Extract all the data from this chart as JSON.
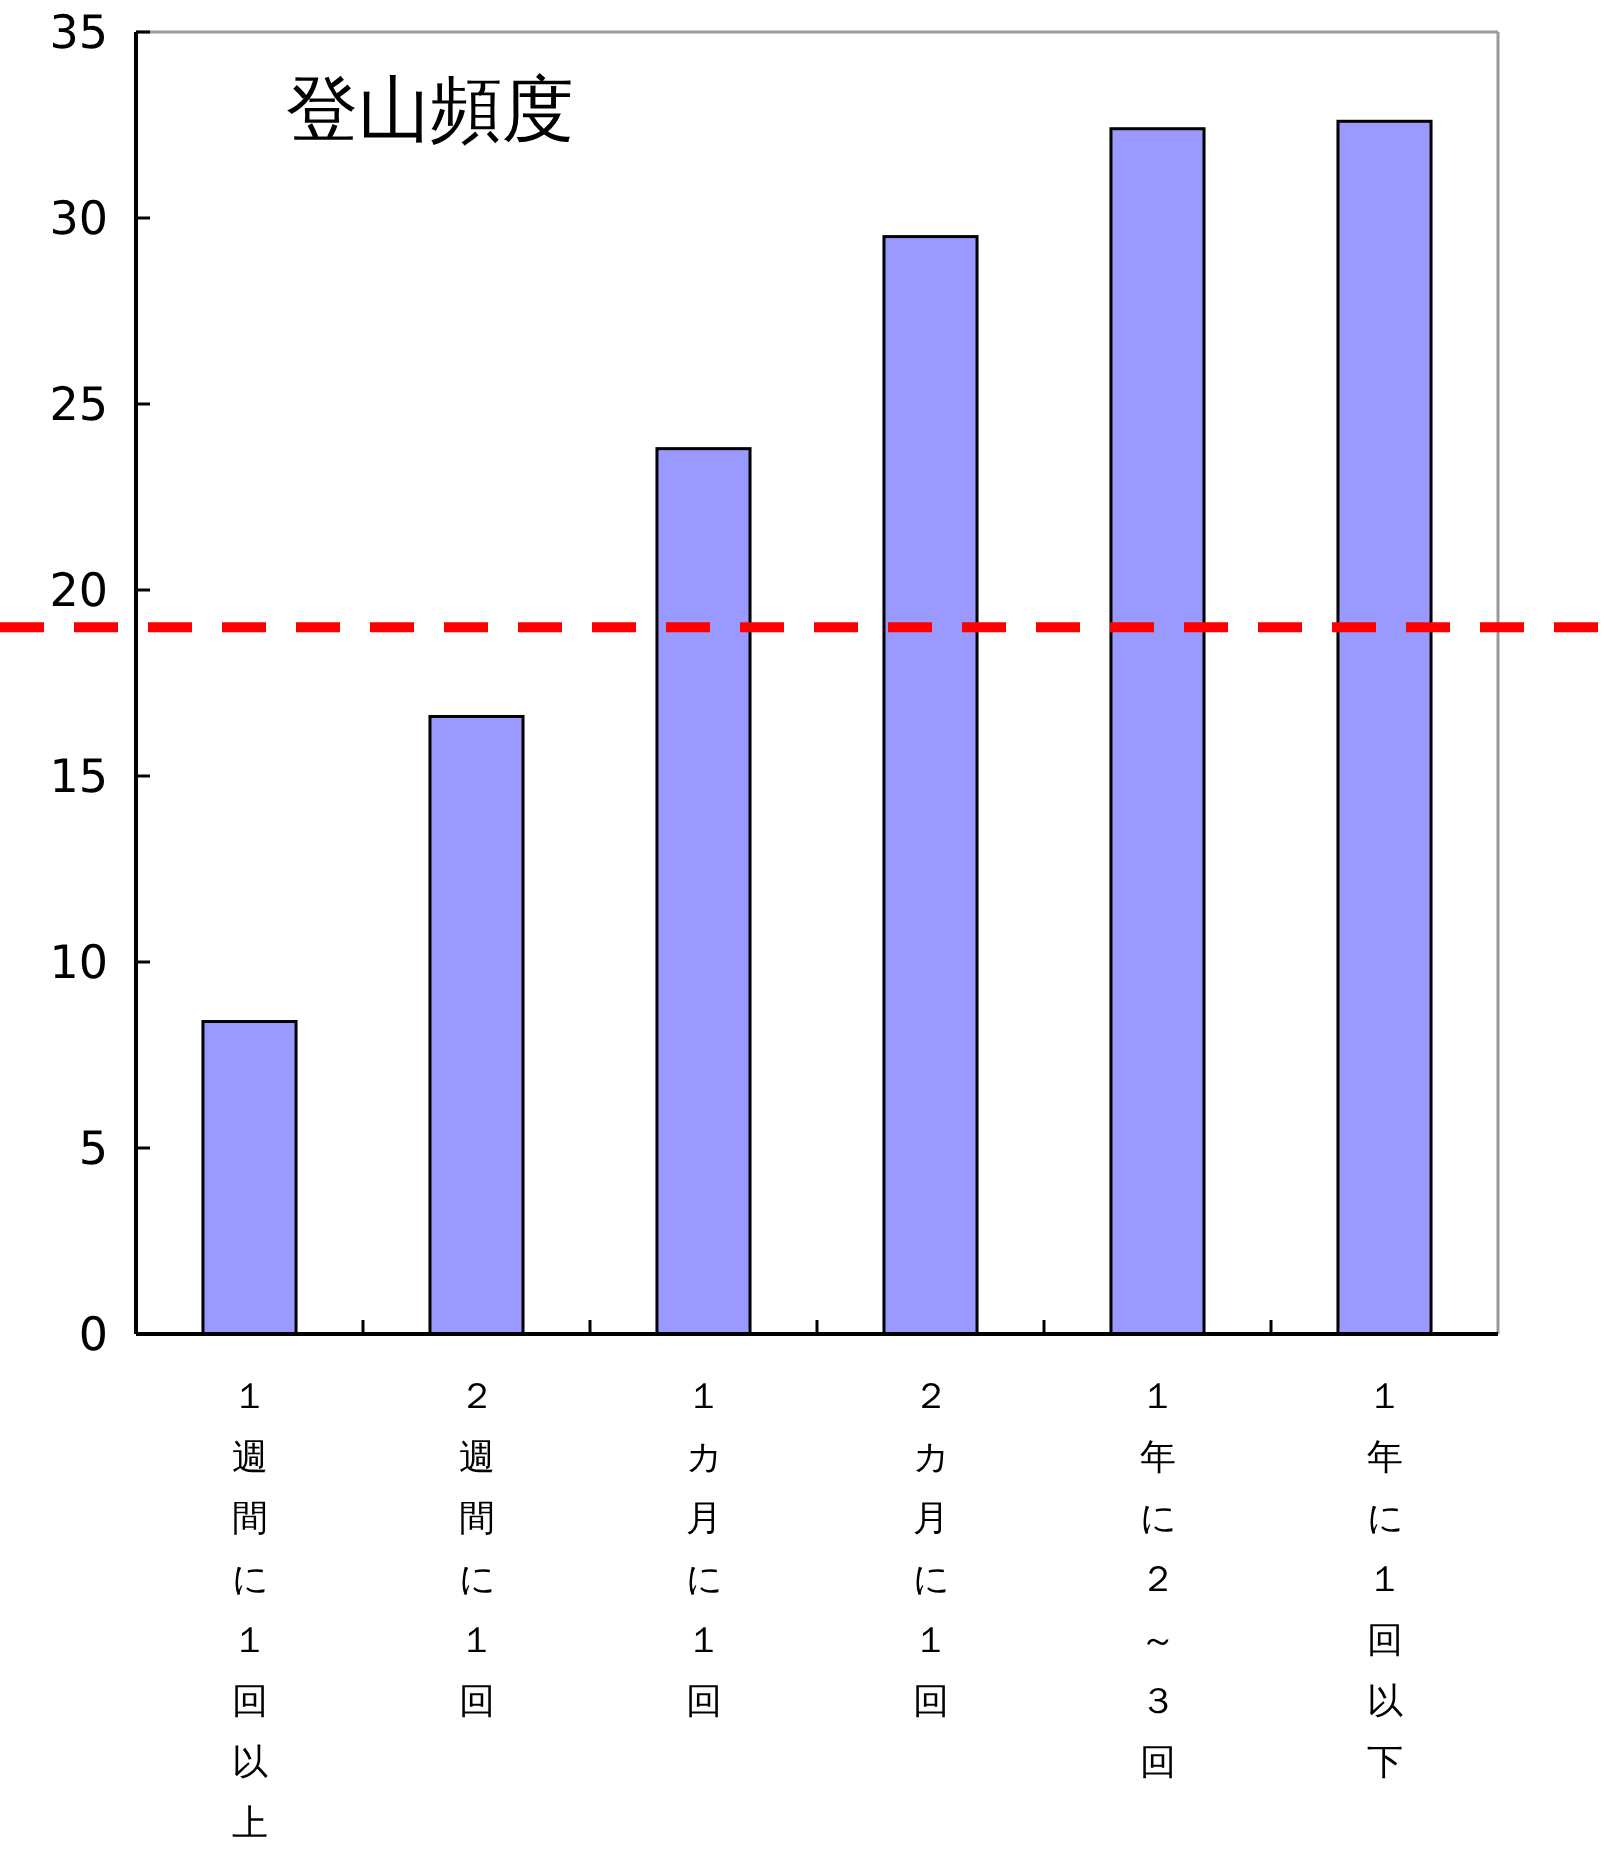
{
  "chart_data": {
    "type": "bar",
    "title": "登山頻度",
    "categories": [
      "１週間に１回以上",
      "２週間に１回",
      "１カ月に１回",
      "２カ月に１回",
      "１年に２～３回",
      "１年に１回以下"
    ],
    "values": [
      8.4,
      16.6,
      23.8,
      29.5,
      32.4,
      32.6
    ],
    "color": "#9999ff",
    "ylim": [
      0,
      35
    ],
    "yticks": [
      0,
      5,
      10,
      15,
      20,
      25,
      30,
      35
    ],
    "ref_lines": [
      {
        "axis": "y",
        "value": 19,
        "color": "#ff0000",
        "line_style": "dashed"
      }
    ]
  }
}
